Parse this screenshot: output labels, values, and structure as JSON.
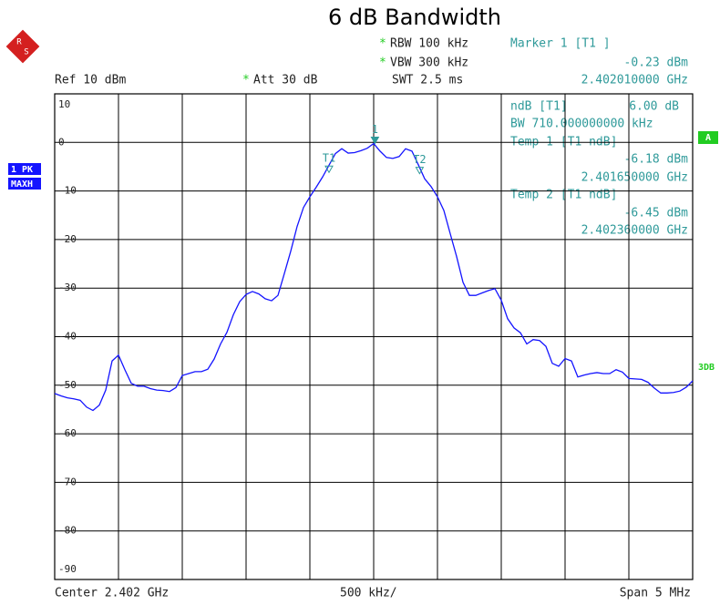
{
  "title": "6 dB Bandwidth",
  "logo": [
    "R",
    "S"
  ],
  "settings": {
    "rbw": {
      "flag": "*",
      "text": "RBW 100 kHz"
    },
    "vbw": {
      "flag": "*",
      "text": "VBW 300 kHz"
    },
    "att": {
      "flag": "*",
      "text": "Att  30 dB"
    },
    "ref": "Ref  10 dBm",
    "swt": "SWT 2.5 ms"
  },
  "trace_labels": [
    "1 PK",
    "MAXH"
  ],
  "status": [
    "A",
    "3DB"
  ],
  "ndb": {
    "label": "ndB [T1]",
    "level": "6.00 dB",
    "bandwidth": "BW 710.000000000 kHz"
  },
  "footer": {
    "center": "Center 2.402 GHz",
    "scale": "500 kHz/",
    "span": "Span 5 MHz"
  },
  "chart_data": {
    "type": "line",
    "color": "#1414ff",
    "xlim": [
      2.3995,
      2.4045
    ],
    "ylim": [
      -90,
      10
    ],
    "yticks": [
      10,
      0,
      -10,
      -20,
      -30,
      -40,
      -50,
      -60,
      -70,
      -80,
      -90
    ],
    "grid": true,
    "x": [
      2.3995,
      2.39955,
      2.3996,
      2.39965,
      2.3997,
      2.39975,
      2.3998,
      2.39985,
      2.3999,
      2.39995,
      2.4,
      2.40005,
      2.4001,
      2.40015,
      2.4002,
      2.40025,
      2.4003,
      2.40035,
      2.4004,
      2.40045,
      2.4005,
      2.40055,
      2.4006,
      2.40065,
      2.4007,
      2.40075,
      2.4008,
      2.40085,
      2.4009,
      2.40095,
      2.401,
      2.40105,
      2.4011,
      2.40115,
      2.4012,
      2.40125,
      2.4013,
      2.40135,
      2.4014,
      2.40145,
      2.4015,
      2.40155,
      2.4016,
      2.40165,
      2.4017,
      2.40175,
      2.4018,
      2.40185,
      2.4019,
      2.40195,
      2.402,
      2.40205,
      2.4021,
      2.40215,
      2.4022,
      2.40225,
      2.4023,
      2.40235,
      2.4024,
      2.40245,
      2.4025,
      2.40255,
      2.4026,
      2.40265,
      2.4027,
      2.40275,
      2.4028,
      2.40285,
      2.4029,
      2.40295,
      2.403,
      2.40305,
      2.4031,
      2.40315,
      2.4032,
      2.40325,
      2.4033,
      2.40335,
      2.4034,
      2.40345,
      2.4035,
      2.40355,
      2.4036,
      2.40365,
      2.4037,
      2.40375,
      2.4038,
      2.40385,
      2.4039,
      2.40395,
      2.404,
      2.40405,
      2.4041,
      2.40415,
      2.4042,
      2.40425,
      2.4043,
      2.40435,
      2.4044,
      2.40445,
      2.4045
    ],
    "values": [
      -51.7,
      -52.2,
      -52.6,
      -52.8,
      -53.1,
      -54.5,
      -55.2,
      -54.1,
      -51,
      -45,
      -43.8,
      -46.8,
      -49.6,
      -50.2,
      -50.2,
      -50.7,
      -51,
      -51.1,
      -51.3,
      -50.5,
      -48,
      -47.6,
      -47.2,
      -47.2,
      -46.7,
      -44.6,
      -41.5,
      -39.1,
      -35.5,
      -32.8,
      -31.3,
      -30.7,
      -31.2,
      -32.2,
      -32.6,
      -31.5,
      -27,
      -22.4,
      -17.3,
      -13.4,
      -11.2,
      -9.2,
      -7.1,
      -4.7,
      -2.3,
      -1.3,
      -2.2,
      -2.1,
      -1.7,
      -1.2,
      -0.23,
      -1.8,
      -3.1,
      -3.3,
      -2.9,
      -1.3,
      -1.8,
      -4.6,
      -7.5,
      -9.1,
      -11.2,
      -14,
      -18.8,
      -23.5,
      -28.8,
      -31.5,
      -31.5,
      -31,
      -30.5,
      -30.1,
      -32.5,
      -36.3,
      -38.2,
      -39.2,
      -41.5,
      -40.6,
      -40.8,
      -42,
      -45.5,
      -46.1,
      -44.5,
      -45,
      -48.3,
      -47.9,
      -47.6,
      -47.4,
      -47.6,
      -47.6,
      -46.8,
      -47.3,
      -48.6,
      -48.7,
      -48.8,
      -49.4,
      -50.6,
      -51.6,
      -51.6,
      -51.5,
      -51.2,
      -50.4,
      -49.1
    ],
    "markers": [
      {
        "symbol": "1",
        "title": "Marker 1 [T1 ]",
        "x": 2.40201,
        "x_label": "2.402010000 GHz",
        "y": -0.23,
        "y_label": "-0.23 dBm"
      },
      {
        "symbol": "T1",
        "title": "Temp 1 [T1 ndB]",
        "x": 2.40165,
        "x_label": "2.401650000 GHz",
        "y": -6.18,
        "y_label": "-6.18 dBm"
      },
      {
        "symbol": "T2",
        "title": "Temp 2 [T1 ndB]",
        "x": 2.40236,
        "x_label": "2.402360000 GHz",
        "y": -6.45,
        "y_label": "-6.45 dBm"
      }
    ]
  }
}
